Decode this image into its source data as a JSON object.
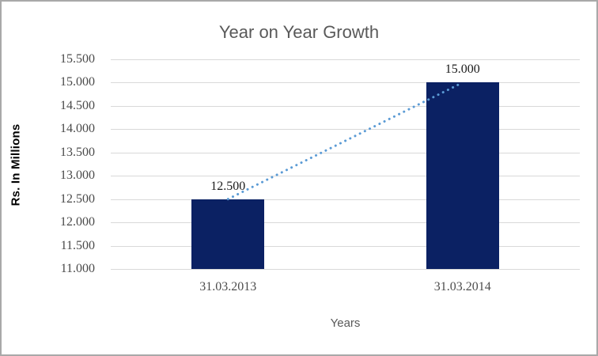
{
  "chart_data": {
    "type": "bar",
    "title": "Year on Year Growth",
    "xlabel": "Years",
    "ylabel": "Rs. In Millions",
    "categories": [
      "31.03.2013",
      "31.03.2014"
    ],
    "values": [
      12.5,
      15.0
    ],
    "data_labels": [
      "12.500",
      "15.000"
    ],
    "yticks": [
      "11.000",
      "11.500",
      "12.000",
      "12.500",
      "13.000",
      "13.500",
      "14.000",
      "14.500",
      "15.000",
      "15.500"
    ],
    "ytick_values": [
      11.0,
      11.5,
      12.0,
      12.5,
      13.0,
      13.5,
      14.0,
      14.5,
      15.0,
      15.5
    ],
    "ylim": [
      11.0,
      15.5
    ],
    "grid": true,
    "legend": "none",
    "bar_color": "#0b2163",
    "trendline": {
      "type": "linear",
      "style": "dotted",
      "color": "#5b9bd5"
    },
    "gridline_color": "#d9d9d9",
    "title_color": "#595959"
  }
}
